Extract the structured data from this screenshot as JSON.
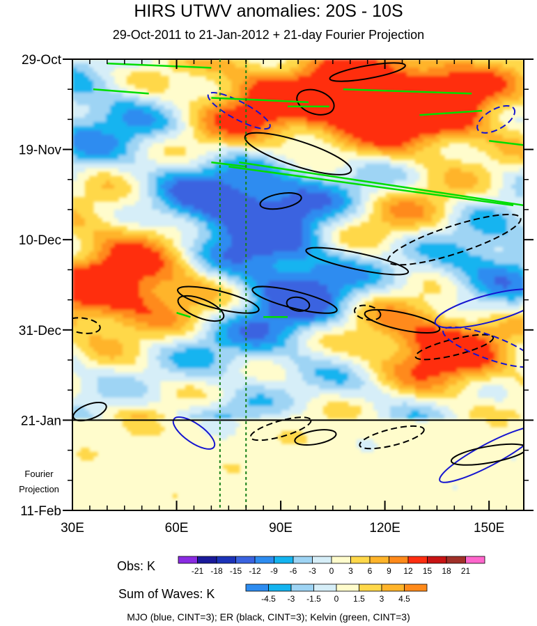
{
  "chart_data": {
    "type": "heatmap",
    "title": "HIRS UTWV anomalies: 20S - 10S",
    "subtitle": "29-Oct-2011 to 21-Jan-2012 + 21-day Fourier Projection",
    "x_ticks": [
      "30E",
      "60E",
      "90E",
      "120E",
      "150E"
    ],
    "x_tick_values": [
      30,
      60,
      90,
      120,
      150
    ],
    "xlim": [
      30,
      160
    ],
    "y_ticks": [
      "29-Oct",
      "19-Nov",
      "10-Dec",
      "31-Dec",
      "21-Jan",
      "11-Feb"
    ],
    "y_tick_days": [
      0,
      21,
      42,
      63,
      84,
      105
    ],
    "ylim_days": [
      0,
      105
    ],
    "projection_start_day": 84,
    "projection_label": [
      "Fourier",
      "Projection"
    ],
    "reference_lons": [
      72.5,
      80
    ],
    "obs_legend": {
      "label": "Obs: K",
      "levels": [
        "-21",
        "-18",
        "-15",
        "-12",
        "-9",
        "-6",
        "-3",
        "0",
        "3",
        "6",
        "9",
        "12",
        "15",
        "18",
        "21"
      ],
      "colors": [
        "#8a2be2",
        "#1a1a9a",
        "#1c33b8",
        "#3a63e0",
        "#2d8cf0",
        "#14b4f0",
        "#9ed4f4",
        "#d6eef8",
        "#fffccc",
        "#ffd84a",
        "#ffb42a",
        "#ff8a1a",
        "#ff2e10",
        "#c81414",
        "#a03028",
        "#ff66cc"
      ]
    },
    "waves_legend": {
      "label": "Sum of Waves: K",
      "levels": [
        "-4.5",
        "-3",
        "-1.5",
        "0",
        "1.5",
        "3",
        "4.5"
      ],
      "colors": [
        "#2d8cf0",
        "#14b4f0",
        "#9ed4f4",
        "#d6eef8",
        "#fffccc",
        "#ffd84a",
        "#ffb42a",
        "#ff8a1a"
      ]
    },
    "contours": [
      {
        "name": "MJO",
        "color": "#1515d0",
        "cint": 3
      },
      {
        "name": "ER",
        "color": "#000000",
        "cint": 3
      },
      {
        "name": "Kelvin",
        "color": "#00dd00",
        "cint": 3
      }
    ],
    "footer": "MJO (blue, CINT=3); ER (black, CINT=3); Kelvin (green, CINT=3)"
  }
}
